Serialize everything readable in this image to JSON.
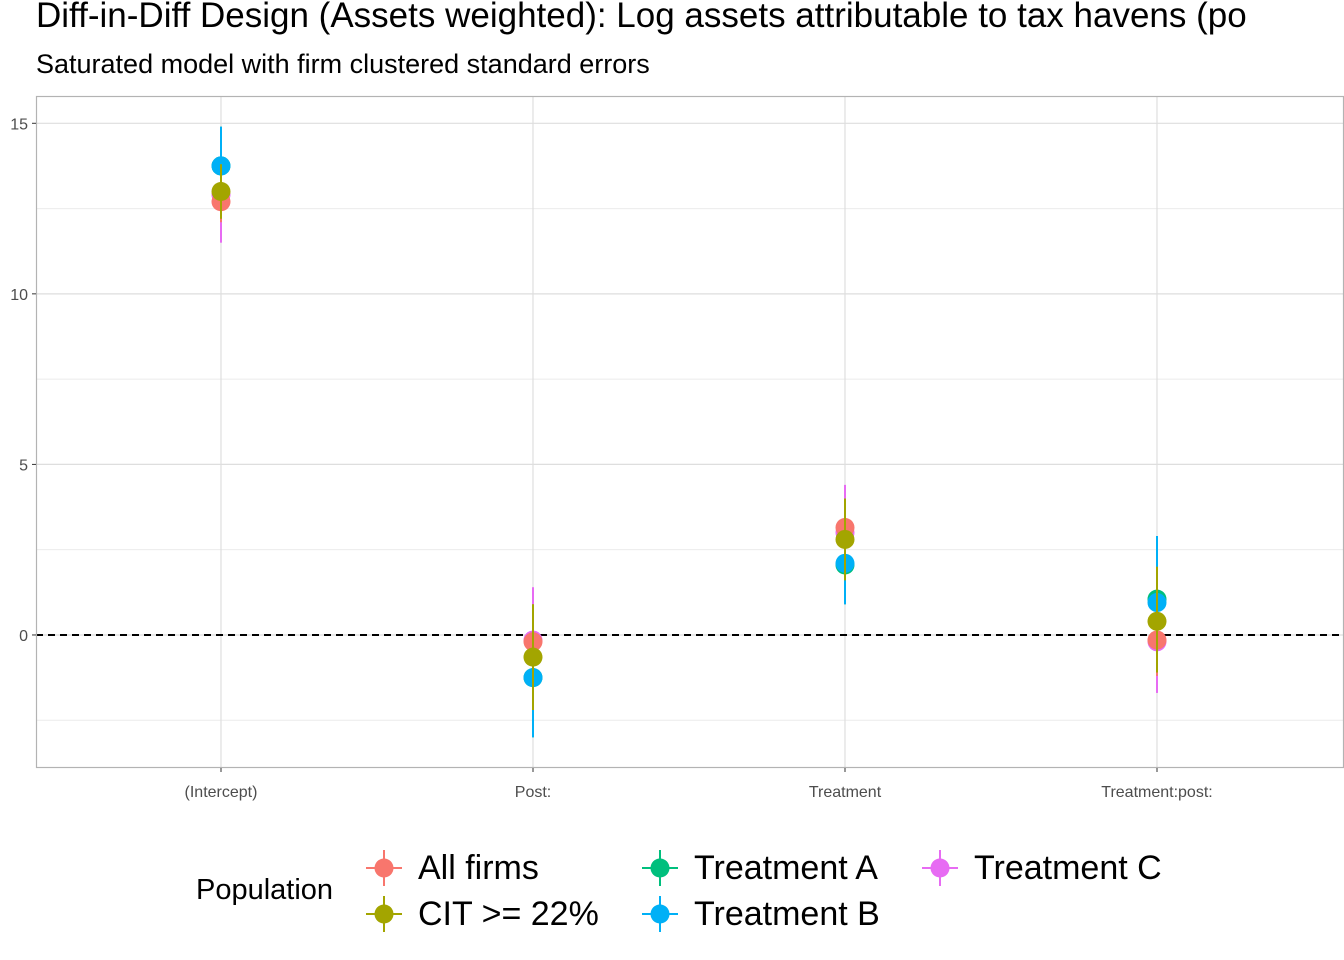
{
  "chart_data": {
    "type": "scatter",
    "title": "Diff-in-Diff Design (Assets weighted): Log assets attributable to tax havens (po",
    "subtitle": "Saturated model with firm clustered standard errors",
    "xlabel": "",
    "ylabel": "",
    "categories": [
      "(Intercept)",
      "Post:",
      "Treatment",
      "Treatment:post:"
    ],
    "ylim": [
      -3.9,
      15.8
    ],
    "yticks": [
      0,
      5,
      10,
      15
    ],
    "grid": true,
    "reference_line": 0,
    "legend": {
      "title": "Population",
      "position": "bottom"
    },
    "series": [
      {
        "name": "All firms",
        "color": "#F8766D",
        "points": [
          {
            "estimate": 12.7,
            "low": 12.1,
            "high": 13.3
          },
          {
            "estimate": -0.2,
            "low": -1.3,
            "high": 0.9
          },
          {
            "estimate": 3.15,
            "low": 2.3,
            "high": 4.0
          },
          {
            "estimate": -0.15,
            "low": -1.2,
            "high": 0.9
          }
        ]
      },
      {
        "name": "CIT >= 22%",
        "color": "#A3A500",
        "points": [
          {
            "estimate": 13.0,
            "low": 12.2,
            "high": 13.8
          },
          {
            "estimate": -0.65,
            "low": -2.2,
            "high": 0.9
          },
          {
            "estimate": 2.8,
            "low": 1.6,
            "high": 4.0
          },
          {
            "estimate": 0.4,
            "low": -1.1,
            "high": 2.0
          }
        ]
      },
      {
        "name": "Treatment A",
        "color": "#00BF7D",
        "points": [
          {
            "estimate": 13.75,
            "low": 12.6,
            "high": 14.9
          },
          {
            "estimate": -1.25,
            "low": -3.0,
            "high": 0.5
          },
          {
            "estimate": 2.05,
            "low": 0.9,
            "high": 3.2
          },
          {
            "estimate": 1.05,
            "low": -0.8,
            "high": 2.9
          }
        ]
      },
      {
        "name": "Treatment B",
        "color": "#00B0F6",
        "points": [
          {
            "estimate": 13.75,
            "low": 12.6,
            "high": 14.9
          },
          {
            "estimate": -1.25,
            "low": -3.0,
            "high": 0.5
          },
          {
            "estimate": 2.1,
            "low": 0.9,
            "high": 3.3
          },
          {
            "estimate": 0.95,
            "low": -1.0,
            "high": 2.9
          }
        ]
      },
      {
        "name": "Treatment C",
        "color": "#E76BF3",
        "points": [
          {
            "estimate": 12.9,
            "low": 11.5,
            "high": 14.3
          },
          {
            "estimate": -0.15,
            "low": -1.7,
            "high": 1.4
          },
          {
            "estimate": 3.0,
            "low": 1.6,
            "high": 4.4
          },
          {
            "estimate": -0.2,
            "low": -1.7,
            "high": 1.3
          }
        ]
      }
    ],
    "draw_order": [
      "Treatment C",
      "All firms",
      "Treatment A",
      "Treatment B",
      "CIT >= 22%"
    ]
  }
}
